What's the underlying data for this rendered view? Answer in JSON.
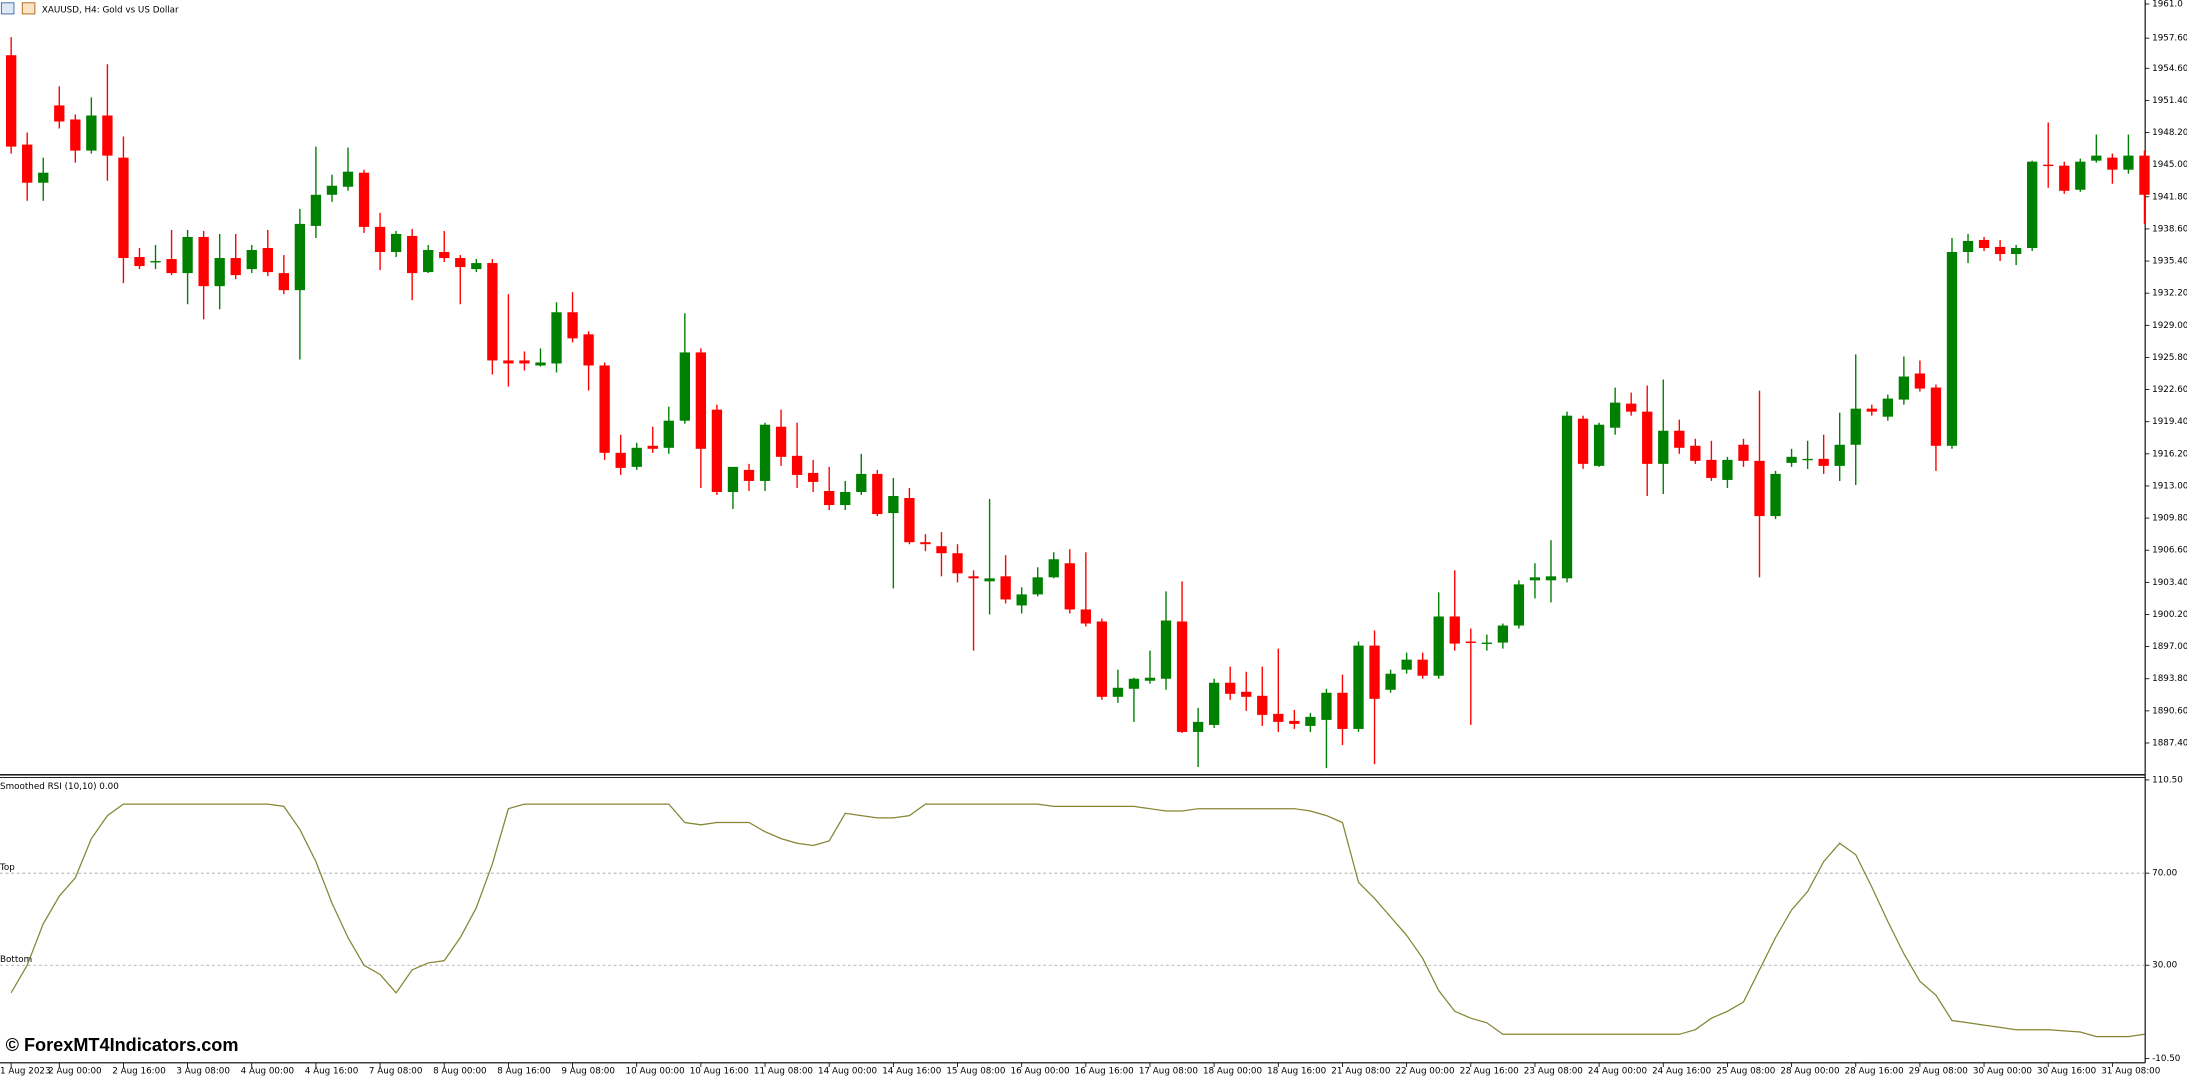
{
  "watermark": "© ForexMT4Indicators.com",
  "chart_data": [
    {
      "type": "candlestick",
      "title": "XAUUSD, H4:  Gold vs US Dollar",
      "up_color": "#008000",
      "down_color": "#ff0000",
      "categories": [
        "1 Aug 2023",
        null,
        null,
        "2 Aug 00:00",
        null,
        null,
        null,
        "2 Aug 16:00",
        null,
        null,
        null,
        "3 Aug 08:00",
        null,
        null,
        null,
        "4 Aug 00:00",
        null,
        null,
        null,
        "4 Aug 16:00",
        null,
        null,
        null,
        "7 Aug 08:00",
        null,
        null,
        null,
        "8 Aug 00:00",
        null,
        null,
        null,
        "8 Aug 16:00",
        null,
        null,
        null,
        "9 Aug 08:00",
        null,
        null,
        null,
        "10 Aug 00:00",
        null,
        null,
        null,
        "10 Aug 16:00",
        null,
        null,
        null,
        "11 Aug 08:00",
        null,
        null,
        null,
        "14 Aug 00:00",
        null,
        null,
        null,
        "14 Aug 16:00",
        null,
        null,
        null,
        "15 Aug 08:00",
        null,
        null,
        null,
        "16 Aug 00:00",
        null,
        null,
        null,
        "16 Aug 16:00",
        null,
        null,
        null,
        "17 Aug 08:00",
        null,
        null,
        null,
        "18 Aug 00:00",
        null,
        null,
        null,
        "18 Aug 16:00",
        null,
        null,
        null,
        "21 Aug 08:00",
        null,
        null,
        null,
        "22 Aug 00:00",
        null,
        null,
        null,
        "22 Aug 16:00",
        null,
        null,
        null,
        "23 Aug 08:00",
        null,
        null,
        null,
        "24 Aug 00:00",
        null,
        null,
        null,
        "24 Aug 16:00",
        null,
        null,
        null,
        "25 Aug 08:00",
        null,
        null,
        null,
        "28 Aug 00:00",
        null,
        null,
        null,
        "28 Aug 16:00",
        null,
        null,
        null,
        "29 Aug 08:00",
        null,
        null,
        null,
        "30 Aug 00:00",
        null,
        null,
        null,
        "30 Aug 16:00",
        null,
        null,
        null,
        "31 Aug 08:00",
        null,
        null
      ],
      "open": [
        1955.9,
        1947.0,
        1943.2,
        1950.9,
        1949.5,
        1946.4,
        1949.9,
        1945.7,
        1935.8,
        1935.3,
        1935.6,
        1934.2,
        1937.8,
        1932.9,
        1935.7,
        1934.6,
        1936.7,
        1934.2,
        1932.5,
        1938.9,
        1942.0,
        1942.8,
        1944.2,
        1938.8,
        1936.3,
        1937.9,
        1934.3,
        1936.3,
        1935.7,
        1934.6,
        1935.2,
        1925.5,
        1925.5,
        1925.0,
        1925.2,
        1930.3,
        1928.1,
        1925.0,
        1916.3,
        1914.9,
        1917.0,
        1916.8,
        1919.5,
        1926.3,
        1920.6,
        1912.4,
        1914.6,
        1913.5,
        1918.9,
        1916.0,
        1914.3,
        1912.5,
        1911.1,
        1912.4,
        1914.2,
        1910.3,
        1911.8,
        1907.4,
        1907.0,
        1906.3,
        1904.0,
        1903.5,
        1904.0,
        1901.1,
        1902.2,
        1903.9,
        1905.3,
        1900.7,
        1899.5,
        1892.0,
        1892.8,
        1893.6,
        1893.8,
        1899.5,
        1888.5,
        1889.2,
        1893.4,
        1892.5,
        1892.1,
        1890.3,
        1889.6,
        1889.1,
        1889.7,
        1892.4,
        1888.8,
        1897.1,
        1892.7,
        1894.7,
        1895.7,
        1894.1,
        1900.0,
        1897.5,
        1897.3,
        1897.4,
        1899.1,
        1903.6,
        1903.6,
        1903.8,
        1919.7,
        1915.0,
        1918.8,
        1921.2,
        1920.4,
        1915.2,
        1918.5,
        1917.0,
        1915.6,
        1913.6,
        1917.1,
        1915.5,
        1910.0,
        1915.3,
        1915.6,
        1915.7,
        1915.0,
        1917.1,
        1920.7,
        1919.9,
        1921.6,
        1924.2,
        1922.8,
        1917.0,
        1936.3,
        1937.5,
        1936.8,
        1936.1,
        1936.7,
        1945.0,
        1944.9,
        1942.5,
        1945.4,
        1945.7,
        1944.5,
        1945.9
      ],
      "high": [
        1957.7,
        1948.2,
        1945.7,
        1952.8,
        1950.0,
        1951.7,
        1955.0,
        1947.8,
        1936.7,
        1937.0,
        1938.5,
        1938.5,
        1938.4,
        1938.1,
        1938.1,
        1937.0,
        1938.5,
        1936.0,
        1940.6,
        1946.8,
        1944.0,
        1946.7,
        1944.5,
        1940.2,
        1938.4,
        1938.6,
        1937.0,
        1938.4,
        1936.0,
        1935.6,
        1935.6,
        1932.1,
        1926.4,
        1926.7,
        1931.3,
        1932.3,
        1928.4,
        1925.3,
        1918.1,
        1917.3,
        1918.9,
        1920.9,
        1930.2,
        1926.7,
        1921.1,
        1914.9,
        1915.2,
        1919.3,
        1920.6,
        1919.3,
        1915.6,
        1914.9,
        1913.5,
        1916.2,
        1914.6,
        1913.8,
        1912.8,
        1908.2,
        1908.4,
        1907.2,
        1904.6,
        1911.7,
        1906.1,
        1902.9,
        1904.9,
        1906.4,
        1906.7,
        1906.4,
        1899.8,
        1894.7,
        1893.9,
        1896.6,
        1902.5,
        1903.5,
        1890.9,
        1893.8,
        1895.0,
        1894.5,
        1895.0,
        1896.8,
        1890.7,
        1890.4,
        1892.8,
        1894.2,
        1897.5,
        1898.6,
        1894.7,
        1896.4,
        1896.4,
        1902.4,
        1904.6,
        1898.8,
        1898.2,
        1899.3,
        1903.6,
        1905.3,
        1907.6,
        1920.4,
        1920.0,
        1919.3,
        1922.8,
        1922.3,
        1923.0,
        1923.6,
        1919.6,
        1917.7,
        1917.5,
        1915.9,
        1917.7,
        1922.5,
        1914.5,
        1916.7,
        1917.5,
        1918.1,
        1920.3,
        1926.1,
        1921.1,
        1922.1,
        1925.9,
        1925.5,
        1923.1,
        1937.7,
        1938.1,
        1937.8,
        1937.5,
        1937.0,
        1945.4,
        1949.2,
        1945.3,
        1945.6,
        1948.0,
        1946.1,
        1948.0,
        1946.4
      ],
      "low": [
        1946.1,
        1941.4,
        1941.4,
        1948.6,
        1945.2,
        1946.1,
        1943.4,
        1933.2,
        1934.6,
        1934.6,
        1934.0,
        1931.1,
        1929.6,
        1930.6,
        1933.6,
        1934.2,
        1933.9,
        1932.1,
        1925.6,
        1937.7,
        1941.3,
        1942.4,
        1938.2,
        1934.5,
        1935.8,
        1931.5,
        1934.2,
        1935.3,
        1931.1,
        1934.3,
        1924.1,
        1922.9,
        1924.5,
        1924.9,
        1924.3,
        1927.3,
        1922.5,
        1915.6,
        1914.1,
        1914.6,
        1916.3,
        1916.2,
        1919.2,
        1912.8,
        1912.1,
        1910.7,
        1912.5,
        1912.5,
        1915.0,
        1912.8,
        1912.4,
        1910.6,
        1910.6,
        1912.1,
        1910.0,
        1902.8,
        1907.2,
        1906.5,
        1904.0,
        1903.4,
        1896.6,
        1900.2,
        1901.3,
        1900.3,
        1902.0,
        1903.8,
        1900.3,
        1899.0,
        1891.7,
        1891.4,
        1889.5,
        1893.3,
        1892.7,
        1888.4,
        1885.0,
        1888.9,
        1891.7,
        1890.6,
        1889.1,
        1888.5,
        1888.8,
        1888.5,
        1884.9,
        1887.2,
        1888.5,
        1885.3,
        1892.4,
        1894.3,
        1893.8,
        1893.8,
        1896.6,
        1889.2,
        1896.6,
        1896.8,
        1898.8,
        1901.8,
        1901.4,
        1903.4,
        1914.7,
        1914.9,
        1918.1,
        1920.0,
        1912.0,
        1912.2,
        1916.2,
        1915.2,
        1913.5,
        1912.8,
        1914.9,
        1903.9,
        1909.7,
        1914.9,
        1914.7,
        1914.2,
        1913.5,
        1913.1,
        1920.0,
        1919.5,
        1921.1,
        1922.4,
        1914.5,
        1916.7,
        1935.2,
        1936.4,
        1935.4,
        1935.0,
        1936.4,
        1942.7,
        1942.1,
        1942.3,
        1945.2,
        1943.1,
        1944.1,
        1939.1
      ],
      "close": [
        1946.8,
        1943.2,
        1944.2,
        1949.3,
        1946.4,
        1949.9,
        1945.9,
        1935.7,
        1934.9,
        1935.4,
        1934.2,
        1937.8,
        1932.9,
        1935.7,
        1934.0,
        1936.5,
        1934.3,
        1932.5,
        1939.1,
        1942.0,
        1942.9,
        1944.3,
        1938.8,
        1936.3,
        1938.1,
        1934.2,
        1936.5,
        1935.7,
        1934.8,
        1935.2,
        1925.5,
        1925.2,
        1925.2,
        1925.3,
        1930.3,
        1927.7,
        1925.0,
        1916.3,
        1914.8,
        1916.8,
        1916.7,
        1919.5,
        1926.3,
        1916.7,
        1912.4,
        1914.9,
        1913.5,
        1919.1,
        1915.9,
        1914.1,
        1913.4,
        1911.1,
        1912.4,
        1914.2,
        1910.2,
        1912.0,
        1907.4,
        1907.2,
        1906.3,
        1904.3,
        1903.8,
        1903.8,
        1901.7,
        1902.2,
        1903.9,
        1905.7,
        1900.7,
        1899.3,
        1892.0,
        1892.9,
        1893.8,
        1893.9,
        1899.6,
        1888.5,
        1889.5,
        1893.4,
        1892.3,
        1892.0,
        1890.2,
        1889.5,
        1889.3,
        1890.0,
        1892.4,
        1888.8,
        1897.1,
        1891.8,
        1894.3,
        1895.7,
        1894.1,
        1900.0,
        1897.3,
        1897.4,
        1897.4,
        1899.1,
        1903.2,
        1903.9,
        1904.0,
        1920.0,
        1915.2,
        1919.1,
        1921.3,
        1920.4,
        1915.2,
        1918.5,
        1916.8,
        1915.5,
        1913.8,
        1915.6,
        1915.5,
        1910.0,
        1914.2,
        1915.9,
        1915.7,
        1915.0,
        1917.1,
        1920.7,
        1920.4,
        1921.7,
        1923.9,
        1922.7,
        1917.0,
        1936.3,
        1937.4,
        1936.7,
        1936.1,
        1936.7,
        1945.3,
        1944.9,
        1942.4,
        1945.3,
        1945.9,
        1944.5,
        1945.9,
        1942.0
      ],
      "ylim": [
        1884.3,
        1961.4
      ],
      "yticks": [
        {
          "value": 1961.0,
          "label": "1961.0"
        },
        {
          "value": 1957.6,
          "label": "1957.60"
        },
        {
          "value": 1954.6,
          "label": "1954.60"
        },
        {
          "value": 1951.4,
          "label": "1951.40"
        },
        {
          "value": 1948.2,
          "label": "1948.20"
        },
        {
          "value": 1945.0,
          "label": "1945.00"
        },
        {
          "value": 1941.8,
          "label": "1941.80"
        },
        {
          "value": 1938.6,
          "label": "1938.60"
        },
        {
          "value": 1935.4,
          "label": "1935.40"
        },
        {
          "value": 1932.2,
          "label": "1932.20"
        },
        {
          "value": 1929.0,
          "label": "1929.00"
        },
        {
          "value": 1925.8,
          "label": "1925.80"
        },
        {
          "value": 1922.6,
          "label": "1922.60"
        },
        {
          "value": 1919.4,
          "label": "1919.40"
        },
        {
          "value": 1916.2,
          "label": "1916.20"
        },
        {
          "value": 1913.0,
          "label": "1913.00"
        },
        {
          "value": 1909.8,
          "label": "1909.80"
        },
        {
          "value": 1906.6,
          "label": "1906.60"
        },
        {
          "value": 1903.4,
          "label": "1903.40"
        },
        {
          "value": 1900.2,
          "label": "1900.20"
        },
        {
          "value": 1897.0,
          "label": "1897.00"
        },
        {
          "value": 1893.8,
          "label": "1893.80"
        },
        {
          "value": 1890.6,
          "label": "1890.60"
        },
        {
          "value": 1887.4,
          "label": "1887.40"
        }
      ]
    },
    {
      "type": "line",
      "title": "Smoothed RSI (10,10) 0.00",
      "color": "#858535",
      "values": [
        18,
        30,
        48,
        60,
        68,
        85,
        95,
        100,
        100,
        100,
        100,
        100,
        100,
        100,
        100,
        100,
        100,
        99,
        89,
        75,
        57,
        42,
        30,
        26,
        18,
        28,
        31,
        32,
        42,
        55,
        74,
        98,
        100,
        100,
        100,
        100,
        100,
        100,
        100,
        100,
        100,
        100,
        92,
        91,
        92,
        92,
        92,
        88,
        85,
        83,
        82,
        84,
        96,
        95,
        94,
        94,
        95,
        100,
        100,
        100,
        100,
        100,
        100,
        100,
        100,
        99,
        99,
        99,
        99,
        99,
        99,
        98,
        97,
        97,
        98,
        98,
        98,
        98,
        98,
        98,
        98,
        97,
        95,
        92,
        66,
        59,
        51,
        43,
        33,
        19,
        10,
        7,
        5,
        0,
        0,
        0,
        0,
        0,
        0,
        0,
        0,
        0,
        0,
        0,
        0,
        2,
        7,
        10,
        14,
        28,
        42,
        54,
        62,
        75,
        83,
        78,
        64,
        49,
        35,
        23,
        17,
        6,
        5,
        4,
        3,
        2,
        2,
        2,
        1.5,
        1,
        -1,
        -1,
        -1,
        0
      ],
      "levels": [
        {
          "value": 70,
          "label": "Top"
        },
        {
          "value": 30,
          "label": "Bottom"
        }
      ],
      "ylim": [
        -12.4,
        111.2
      ],
      "yticks": [
        {
          "value": 110.5,
          "label": "110.50"
        },
        {
          "value": 70,
          "label": "70.00"
        },
        {
          "value": 30,
          "label": "30.00"
        },
        {
          "value": -10.5,
          "label": "-10.50"
        }
      ]
    }
  ]
}
